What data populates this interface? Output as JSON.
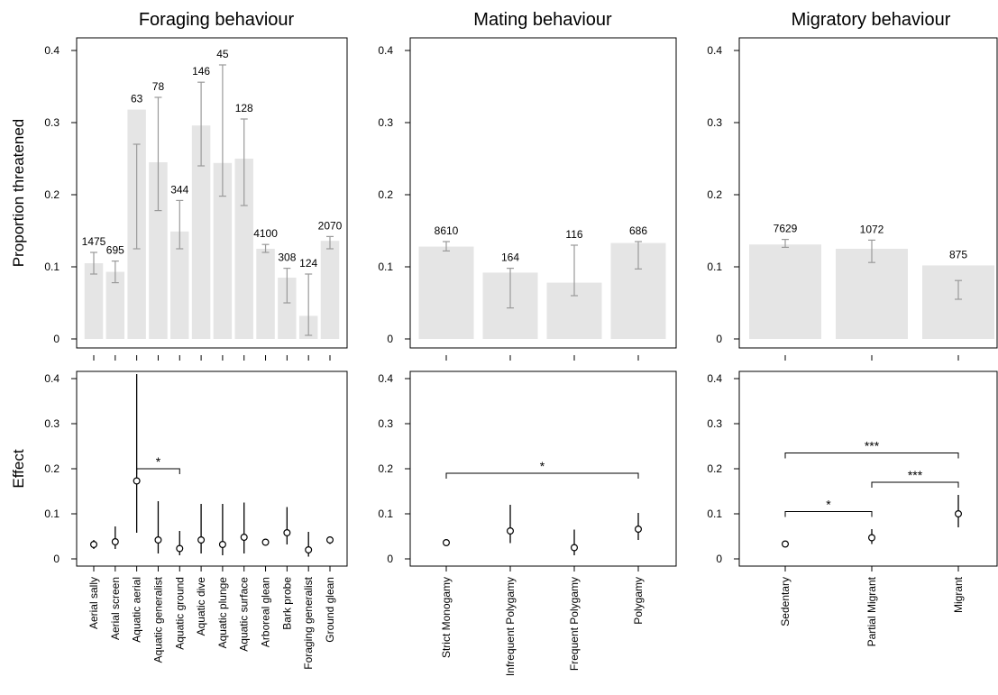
{
  "chart_data": [
    {
      "type": "bar",
      "panel": "top-1",
      "title": "Foraging behaviour",
      "ylabel": "Proportion threatened",
      "ylim": [
        0,
        0.4
      ],
      "yticks": [
        "0",
        "0.1",
        "0.2",
        "0.3",
        "0.4"
      ],
      "categories": [
        "Aerial sally",
        "Aerial screen",
        "Aquatic aerial",
        "Aquatic generalist",
        "Aquatic ground",
        "Aquatic dive",
        "Aquatic plunge",
        "Aquatic surface",
        "Arboreal glean",
        "Bark probe",
        "Foraging generalist",
        "Ground glean"
      ],
      "values": [
        0.105,
        0.093,
        0.318,
        0.245,
        0.149,
        0.296,
        0.244,
        0.25,
        0.125,
        0.085,
        0.032,
        0.136
      ],
      "err_low": [
        0.09,
        0.078,
        0.125,
        0.178,
        0.125,
        0.24,
        0.198,
        0.185,
        0.12,
        0.05,
        0.005,
        0.125
      ],
      "err_high": [
        0.12,
        0.108,
        0.27,
        0.335,
        0.192,
        0.356,
        0.38,
        0.305,
        0.131,
        0.098,
        0.09,
        0.142
      ],
      "labels": [
        "1475",
        "695",
        "63",
        "78",
        "344",
        "146",
        "45",
        "128",
        "4100",
        "308",
        "124",
        "2070"
      ]
    },
    {
      "type": "bar",
      "panel": "top-2",
      "title": "Mating behaviour",
      "ylim": [
        0,
        0.4
      ],
      "yticks": [
        "0",
        "0.1",
        "0.2",
        "0.3",
        "0.4"
      ],
      "categories": [
        "Strict Monogamy",
        "Infrequent Polygamy",
        "Frequent Polygamy",
        "Polygamy"
      ],
      "values": [
        0.128,
        0.092,
        0.078,
        0.133
      ],
      "err_low": [
        0.122,
        0.043,
        0.06,
        0.097
      ],
      "err_high": [
        0.135,
        0.098,
        0.13,
        0.135
      ],
      "labels": [
        "8610",
        "164",
        "116",
        "686"
      ]
    },
    {
      "type": "bar",
      "panel": "top-3",
      "title": "Migratory behaviour",
      "ylim": [
        0,
        0.4
      ],
      "yticks": [
        "0",
        "0.1",
        "0.2",
        "0.3",
        "0.4"
      ],
      "categories": [
        "Sedentary",
        "Partial Migrant",
        "Migrant"
      ],
      "values": [
        0.131,
        0.125,
        0.102
      ],
      "err_low": [
        0.127,
        0.106,
        0.055
      ],
      "err_high": [
        0.138,
        0.137,
        0.081
      ],
      "labels": [
        "7629",
        "1072",
        "875"
      ]
    },
    {
      "type": "scatter",
      "panel": "bottom-1",
      "ylabel": "Effect",
      "ylim": [
        0,
        0.4
      ],
      "yticks": [
        "0",
        "0.1",
        "0.2",
        "0.3",
        "0.4"
      ],
      "categories": [
        "Aerial sally",
        "Aerial screen",
        "Aquatic aerial",
        "Aquatic generalist",
        "Aquatic ground",
        "Aquatic dive",
        "Aquatic plunge",
        "Aquatic surface",
        "Arboreal glean",
        "Bark probe",
        "Foraging generalist",
        "Ground glean"
      ],
      "values": [
        0.032,
        0.038,
        0.173,
        0.042,
        0.023,
        0.042,
        0.032,
        0.048,
        0.037,
        0.058,
        0.02,
        0.042
      ],
      "err_low": [
        0.022,
        0.022,
        0.058,
        0.012,
        0.008,
        0.012,
        0.008,
        0.012,
        0.032,
        0.032,
        0.005,
        0.033
      ],
      "err_high": [
        0.042,
        0.072,
        0.41,
        0.128,
        0.062,
        0.122,
        0.122,
        0.125,
        0.042,
        0.115,
        0.06,
        0.05
      ],
      "significance": [
        {
          "from": 2,
          "to": 4,
          "y": 0.2,
          "label": "*"
        }
      ]
    },
    {
      "type": "scatter",
      "panel": "bottom-2",
      "ylim": [
        0,
        0.4
      ],
      "yticks": [
        "0",
        "0.1",
        "0.2",
        "0.3",
        "0.4"
      ],
      "categories": [
        "Strict Monogamy",
        "Infrequent Polygamy",
        "Frequent Polygamy",
        "Polygamy"
      ],
      "values": [
        0.036,
        0.062,
        0.025,
        0.066
      ],
      "err_low": [
        0.036,
        0.035,
        0.008,
        0.042
      ],
      "err_high": [
        0.036,
        0.12,
        0.065,
        0.102
      ],
      "significance": [
        {
          "from": 0,
          "to": 3,
          "y": 0.19,
          "label": "*"
        }
      ]
    },
    {
      "type": "scatter",
      "panel": "bottom-3",
      "ylim": [
        0,
        0.4
      ],
      "yticks": [
        "0",
        "0.1",
        "0.2",
        "0.3",
        "0.4"
      ],
      "categories": [
        "Sedentary",
        "Partial Migrant",
        "Migrant"
      ],
      "values": [
        0.033,
        0.047,
        0.1
      ],
      "err_low": [
        0.033,
        0.033,
        0.07
      ],
      "err_high": [
        0.033,
        0.066,
        0.142
      ],
      "significance": [
        {
          "from": 0,
          "to": 2,
          "y": 0.235,
          "label": "***"
        },
        {
          "from": 1,
          "to": 2,
          "y": 0.17,
          "label": "***"
        },
        {
          "from": 0,
          "to": 1,
          "y": 0.105,
          "label": "*"
        }
      ]
    }
  ]
}
